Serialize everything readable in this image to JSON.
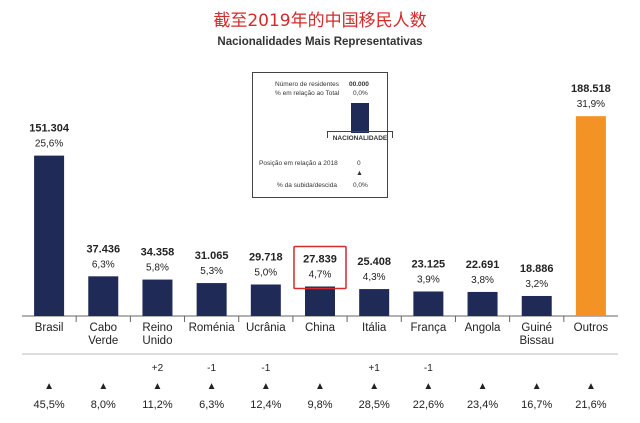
{
  "title": "截至2019年的中国移民人数",
  "subtitle": "Nacionalidades Mais Representativas",
  "legend": {
    "residents_label": "Número de residentes",
    "residents_value": "00.000",
    "percent_label": "% em relação ao Total",
    "percent_value": "0,0%",
    "category_label": "NACIONALIDADE",
    "position_label": "Posição em relação a 2018",
    "position_value": "0",
    "rise_label": "% da subida/descida",
    "rise_value": "0,0%"
  },
  "colors": {
    "bar": "#1f2a56",
    "highlight_bar": "#f39325",
    "highlight_box": "#d42a2a",
    "title": "#d42a2a"
  },
  "chart_data": {
    "type": "bar",
    "title": "Nacionalidades Mais Representativas",
    "xlabel": "",
    "ylabel": "",
    "ylim": [
      0,
      200000
    ],
    "grid": false,
    "legend": "top-center",
    "categories": [
      "Brasil",
      "Cabo Verde",
      "Reino Unido",
      "Roménia",
      "Ucrânia",
      "China",
      "Itália",
      "França",
      "Angola",
      "Guiné Bissau",
      "Outros"
    ],
    "category_lines": [
      [
        "Brasil"
      ],
      [
        "Cabo",
        "Verde"
      ],
      [
        "Reino",
        "Unido"
      ],
      [
        "Roménia"
      ],
      [
        "Ucrânia"
      ],
      [
        "China"
      ],
      [
        "Itália"
      ],
      [
        "França"
      ],
      [
        "Angola"
      ],
      [
        "Guiné",
        "Bissau"
      ],
      [
        "Outros"
      ]
    ],
    "values": [
      151304,
      37436,
      34358,
      31065,
      29718,
      27839,
      25408,
      23125,
      22691,
      18886,
      188518
    ],
    "value_labels": [
      "151.304",
      "37.436",
      "34.358",
      "31.065",
      "29.718",
      "27.839",
      "25.408",
      "23.125",
      "22.691",
      "18.886",
      "188.518"
    ],
    "share_labels": [
      "25,6%",
      "6,3%",
      "5,8%",
      "5,3%",
      "5,0%",
      "4,7%",
      "4,3%",
      "3,9%",
      "3,8%",
      "3,2%",
      "31,9%"
    ],
    "rank_change": [
      "",
      "",
      "+2",
      "-1",
      "-1",
      "",
      "+1",
      "-1",
      "",
      "",
      ""
    ],
    "growth_labels": [
      "45,5%",
      "8,0%",
      "11,2%",
      "6,3%",
      "12,4%",
      "9,8%",
      "28,5%",
      "22,6%",
      "23,4%",
      "16,7%",
      "21,6%"
    ],
    "highlighted": [
      "China"
    ],
    "other_category": "Outros"
  }
}
